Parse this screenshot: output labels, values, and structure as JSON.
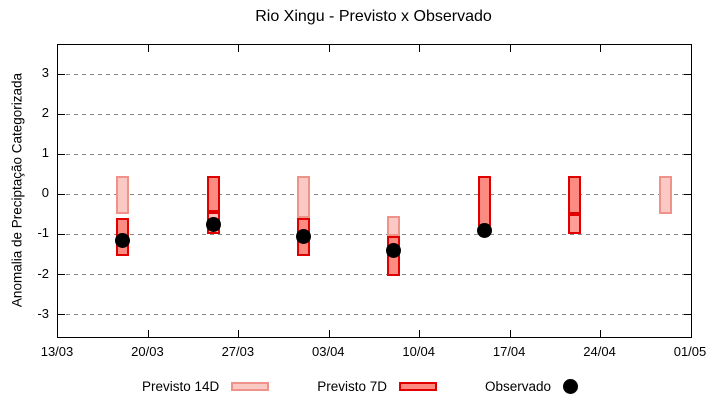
{
  "title": "Rio Xingu - Previsto x Observado",
  "chart_data": {
    "type": "bar",
    "title": "Rio Xingu - Previsto x Observado",
    "xlabel": "",
    "ylabel": "Anomalia de Preciptação Categorizada",
    "ylim": [
      -3.6,
      3.7
    ],
    "yticks": [
      3,
      2,
      1,
      0,
      -1,
      -2,
      -3
    ],
    "ytick_labels": [
      "3",
      "2",
      "1",
      "0",
      "-1",
      "-2",
      "-3"
    ],
    "xtick_days": [
      0,
      7,
      14,
      21,
      28,
      35,
      42,
      49
    ],
    "xtick_labels": [
      "13/03",
      "20/03",
      "27/03",
      "03/04",
      "10/04",
      "17/04",
      "24/04",
      "01/05"
    ],
    "x_span_days": 49,
    "grid": true,
    "legend_position": "bottom-center",
    "styles": {
      "prev14": {
        "fill": "#fac9c3",
        "border": "#ef9289"
      },
      "prev7": {
        "fill": "#fc8b82",
        "border": "#e00000"
      },
      "prev14_redborder": {
        "fill": "#f9c2bb",
        "border": "#e00000"
      },
      "prev14_mid": {
        "fill": "#ff9e97",
        "border": "#e00000"
      }
    },
    "clusters": [
      {
        "date": "18/03",
        "day": 5,
        "segments": [
          {
            "from": 0.45,
            "to": -0.5,
            "style": "prev14",
            "series": "Previsto 14D"
          },
          {
            "from": -0.6,
            "to": -1.55,
            "style": "prev7",
            "series": "Previsto 7D"
          }
        ],
        "observed": -1.15
      },
      {
        "date": "25/03",
        "day": 12,
        "segments": [
          {
            "from": 0.45,
            "to": -0.45,
            "style": "prev7",
            "series": "Previsto 7D"
          },
          {
            "from": -0.45,
            "to": -1.0,
            "style": "prev14_redborder",
            "series": "Previsto 14D"
          }
        ],
        "observed": -0.75
      },
      {
        "date": "01/04",
        "day": 19,
        "segments": [
          {
            "from": 0.45,
            "to": -0.6,
            "style": "prev14",
            "series": "Previsto 14D"
          },
          {
            "from": -0.6,
            "to": -1.55,
            "style": "prev7",
            "series": "Previsto 7D"
          }
        ],
        "observed": -1.05
      },
      {
        "date": "08/04",
        "day": 26,
        "segments": [
          {
            "from": -0.55,
            "to": -1.05,
            "style": "prev14",
            "series": "Previsto 14D"
          },
          {
            "from": -1.05,
            "to": -2.05,
            "style": "prev7",
            "series": "Previsto 7D"
          }
        ],
        "observed": -1.4
      },
      {
        "date": "15/04",
        "day": 33,
        "segments": [
          {
            "from": 0.45,
            "to": -0.8,
            "style": "prev7",
            "series": "Previsto 7D"
          }
        ],
        "observed": -0.9
      },
      {
        "date": "22/04",
        "day": 40,
        "segments": [
          {
            "from": 0.45,
            "to": -0.5,
            "style": "prev7",
            "series": "Previsto 7D"
          },
          {
            "from": -0.5,
            "to": -1.0,
            "style": "prev14_mid",
            "series": "Previsto 14D"
          }
        ],
        "observed": null
      },
      {
        "date": "29/04",
        "day": 47,
        "segments": [
          {
            "from": 0.45,
            "to": -0.5,
            "style": "prev14",
            "series": "Previsto 14D"
          }
        ],
        "observed": null
      }
    ],
    "legend": [
      {
        "label": "Previsto 14D",
        "swatch": "prev14"
      },
      {
        "label": "Previsto 7D",
        "swatch": "prev7"
      },
      {
        "label": "Observado",
        "swatch": "dot"
      }
    ]
  },
  "colors": {
    "grid": "#878787",
    "frame": "#000000",
    "observed_dot": "#000000",
    "background": "#ffffff"
  }
}
